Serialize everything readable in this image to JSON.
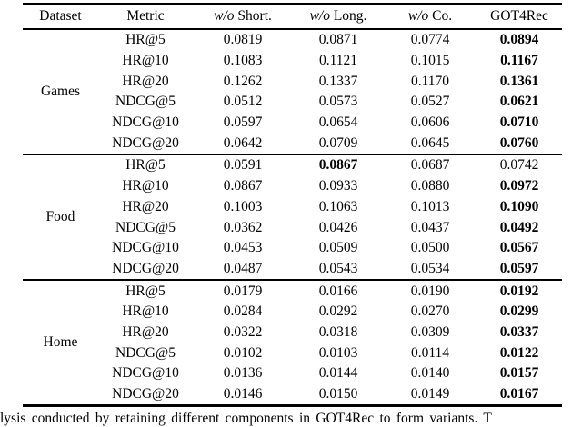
{
  "page": {
    "background_color": "#ffffff",
    "text_color": "#000000"
  },
  "table": {
    "headers": [
      {
        "label": "Dataset"
      },
      {
        "label": "Metric"
      },
      {
        "italic": "w/o",
        "label": " Short."
      },
      {
        "italic": "w/o",
        "label": " Long."
      },
      {
        "italic": "w/o",
        "label": " Co."
      },
      {
        "label": "GOT4Rec"
      }
    ],
    "groups": [
      {
        "dataset": "Games",
        "rows": [
          {
            "metric": "HR@5",
            "values": [
              "0.0819",
              "0.0871",
              "0.0774",
              "0.0894"
            ],
            "bold_index": 3
          },
          {
            "metric": "HR@10",
            "values": [
              "0.1083",
              "0.1121",
              "0.1015",
              "0.1167"
            ],
            "bold_index": 3
          },
          {
            "metric": "HR@20",
            "values": [
              "0.1262",
              "0.1337",
              "0.1170",
              "0.1361"
            ],
            "bold_index": 3
          },
          {
            "metric": "NDCG@5",
            "values": [
              "0.0512",
              "0.0573",
              "0.0527",
              "0.0621"
            ],
            "bold_index": 3
          },
          {
            "metric": "NDCG@10",
            "values": [
              "0.0597",
              "0.0654",
              "0.0606",
              "0.0710"
            ],
            "bold_index": 3
          },
          {
            "metric": "NDCG@20",
            "values": [
              "0.0642",
              "0.0709",
              "0.0645",
              "0.0760"
            ],
            "bold_index": 3
          }
        ]
      },
      {
        "dataset": "Food",
        "rows": [
          {
            "metric": "HR@5",
            "values": [
              "0.0591",
              "0.0867",
              "0.0687",
              "0.0742"
            ],
            "bold_index": 1
          },
          {
            "metric": "HR@10",
            "values": [
              "0.0867",
              "0.0933",
              "0.0880",
              "0.0972"
            ],
            "bold_index": 3
          },
          {
            "metric": "HR@20",
            "values": [
              "0.1003",
              "0.1063",
              "0.1013",
              "0.1090"
            ],
            "bold_index": 3
          },
          {
            "metric": "NDCG@5",
            "values": [
              "0.0362",
              "0.0426",
              "0.0437",
              "0.0492"
            ],
            "bold_index": 3
          },
          {
            "metric": "NDCG@10",
            "values": [
              "0.0453",
              "0.0509",
              "0.0500",
              "0.0567"
            ],
            "bold_index": 3
          },
          {
            "metric": "NDCG@20",
            "values": [
              "0.0487",
              "0.0543",
              "0.0534",
              "0.0597"
            ],
            "bold_index": 3
          }
        ]
      },
      {
        "dataset": "Home",
        "rows": [
          {
            "metric": "HR@5",
            "values": [
              "0.0179",
              "0.0166",
              "0.0190",
              "0.0192"
            ],
            "bold_index": 3
          },
          {
            "metric": "HR@10",
            "values": [
              "0.0284",
              "0.0292",
              "0.0270",
              "0.0299"
            ],
            "bold_index": 3
          },
          {
            "metric": "HR@20",
            "values": [
              "0.0322",
              "0.0318",
              "0.0309",
              "0.0337"
            ],
            "bold_index": 3
          },
          {
            "metric": "NDCG@5",
            "values": [
              "0.0102",
              "0.0103",
              "0.0114",
              "0.0122"
            ],
            "bold_index": 3
          },
          {
            "metric": "NDCG@10",
            "values": [
              "0.0136",
              "0.0144",
              "0.0140",
              "0.0157"
            ],
            "bold_index": 3
          },
          {
            "metric": "NDCG@20",
            "values": [
              "0.0146",
              "0.0150",
              "0.0149",
              "0.0167"
            ],
            "bold_index": 3
          }
        ]
      }
    ]
  },
  "caption": {
    "fragment": "lysis conducted by retaining different components in GOT4Rec to form variants. T"
  }
}
